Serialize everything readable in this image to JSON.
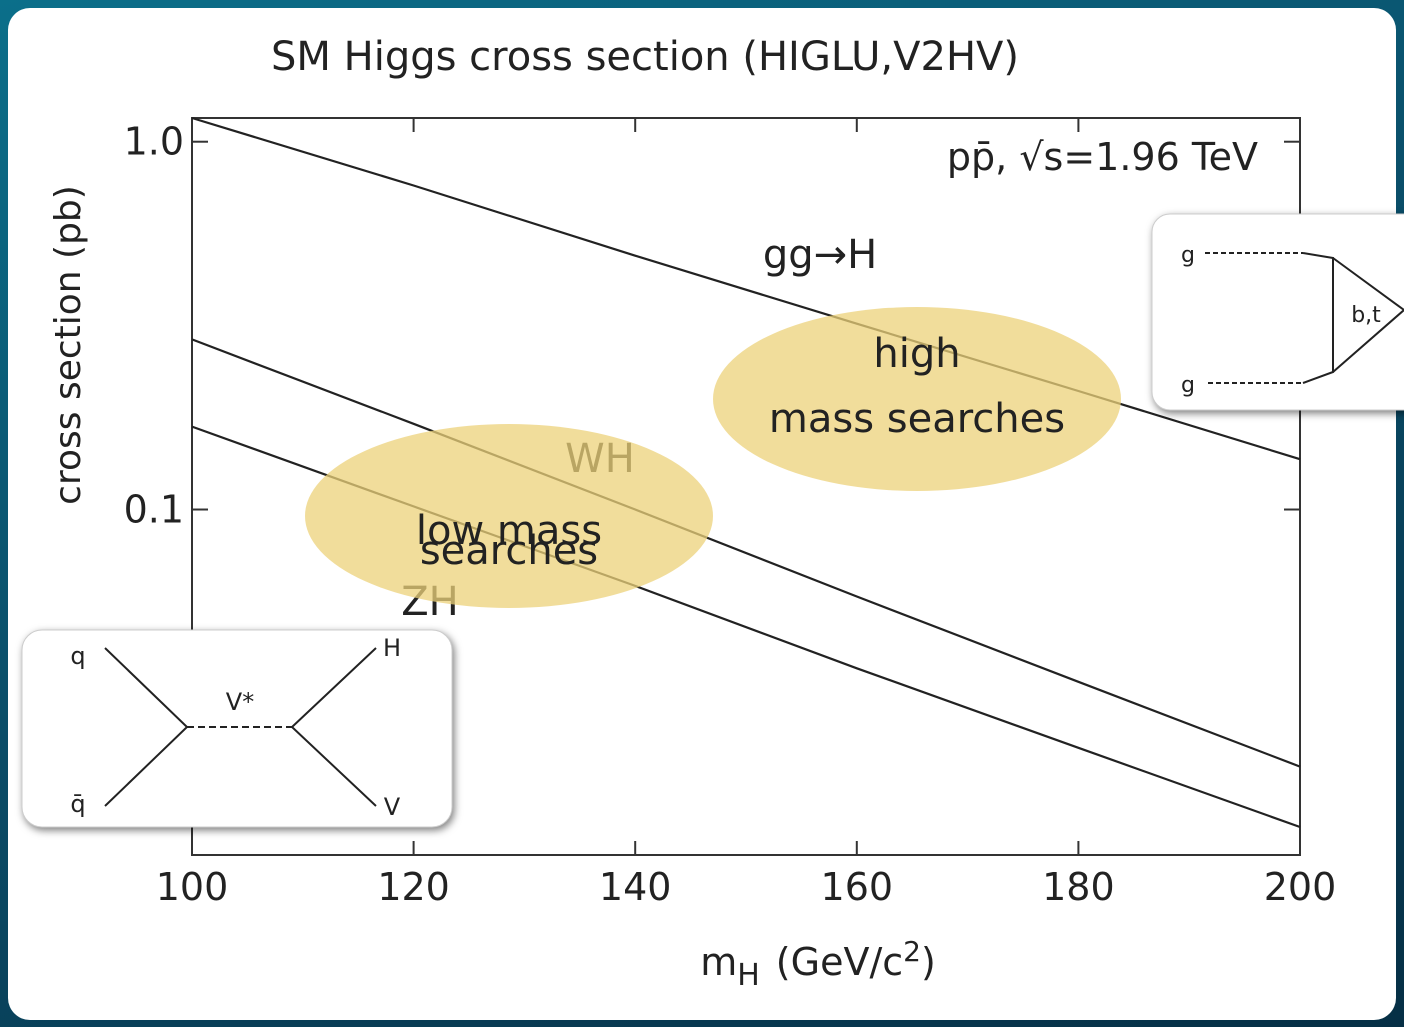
{
  "chart_data": {
    "type": "line",
    "title": "SM Higgs cross section (HIGLU,V2HV)",
    "y_label": "cross section (pb)",
    "x_label": [
      "m",
      "H",
      "(GeV/c",
      "2",
      ")"
    ],
    "x": [
      100,
      120,
      140,
      160,
      180,
      200
    ],
    "series": [
      {
        "name": "gg→H",
        "color": "#222222",
        "values": [
          1.16,
          0.76,
          0.49,
          0.32,
          0.21,
          0.137
        ]
      },
      {
        "name": "WH",
        "color": "#222222",
        "values": [
          0.29,
          0.171,
          0.1,
          0.058,
          0.034,
          0.02
        ]
      },
      {
        "name": "ZH",
        "color": "#222222",
        "values": [
          0.168,
          0.102,
          0.062,
          0.037,
          0.0225,
          0.0137
        ]
      }
    ],
    "xlim": [
      100,
      200
    ],
    "xticks": [
      100,
      120,
      140,
      160,
      180,
      200
    ],
    "ylim": [
      0.0115,
      1.16
    ],
    "yticks": [
      {
        "value": 1,
        "label": "1.0"
      },
      0.1
    ],
    "log_y": true,
    "annotation": "pp̄, √s=1.96 TeV",
    "highlights": [
      {
        "color": "#ecd27a",
        "lines": [
          "high",
          "mass searches"
        ]
      },
      {
        "color": "#ecd27a",
        "lines": [
          "low mass",
          "searches"
        ]
      }
    ]
  },
  "diagrams": {
    "gluon_fusion": [
      "g",
      "g",
      "b,t"
    ],
    "higgsstrahlung": [
      "q",
      "q̄",
      "V*",
      "H",
      "V"
    ]
  }
}
